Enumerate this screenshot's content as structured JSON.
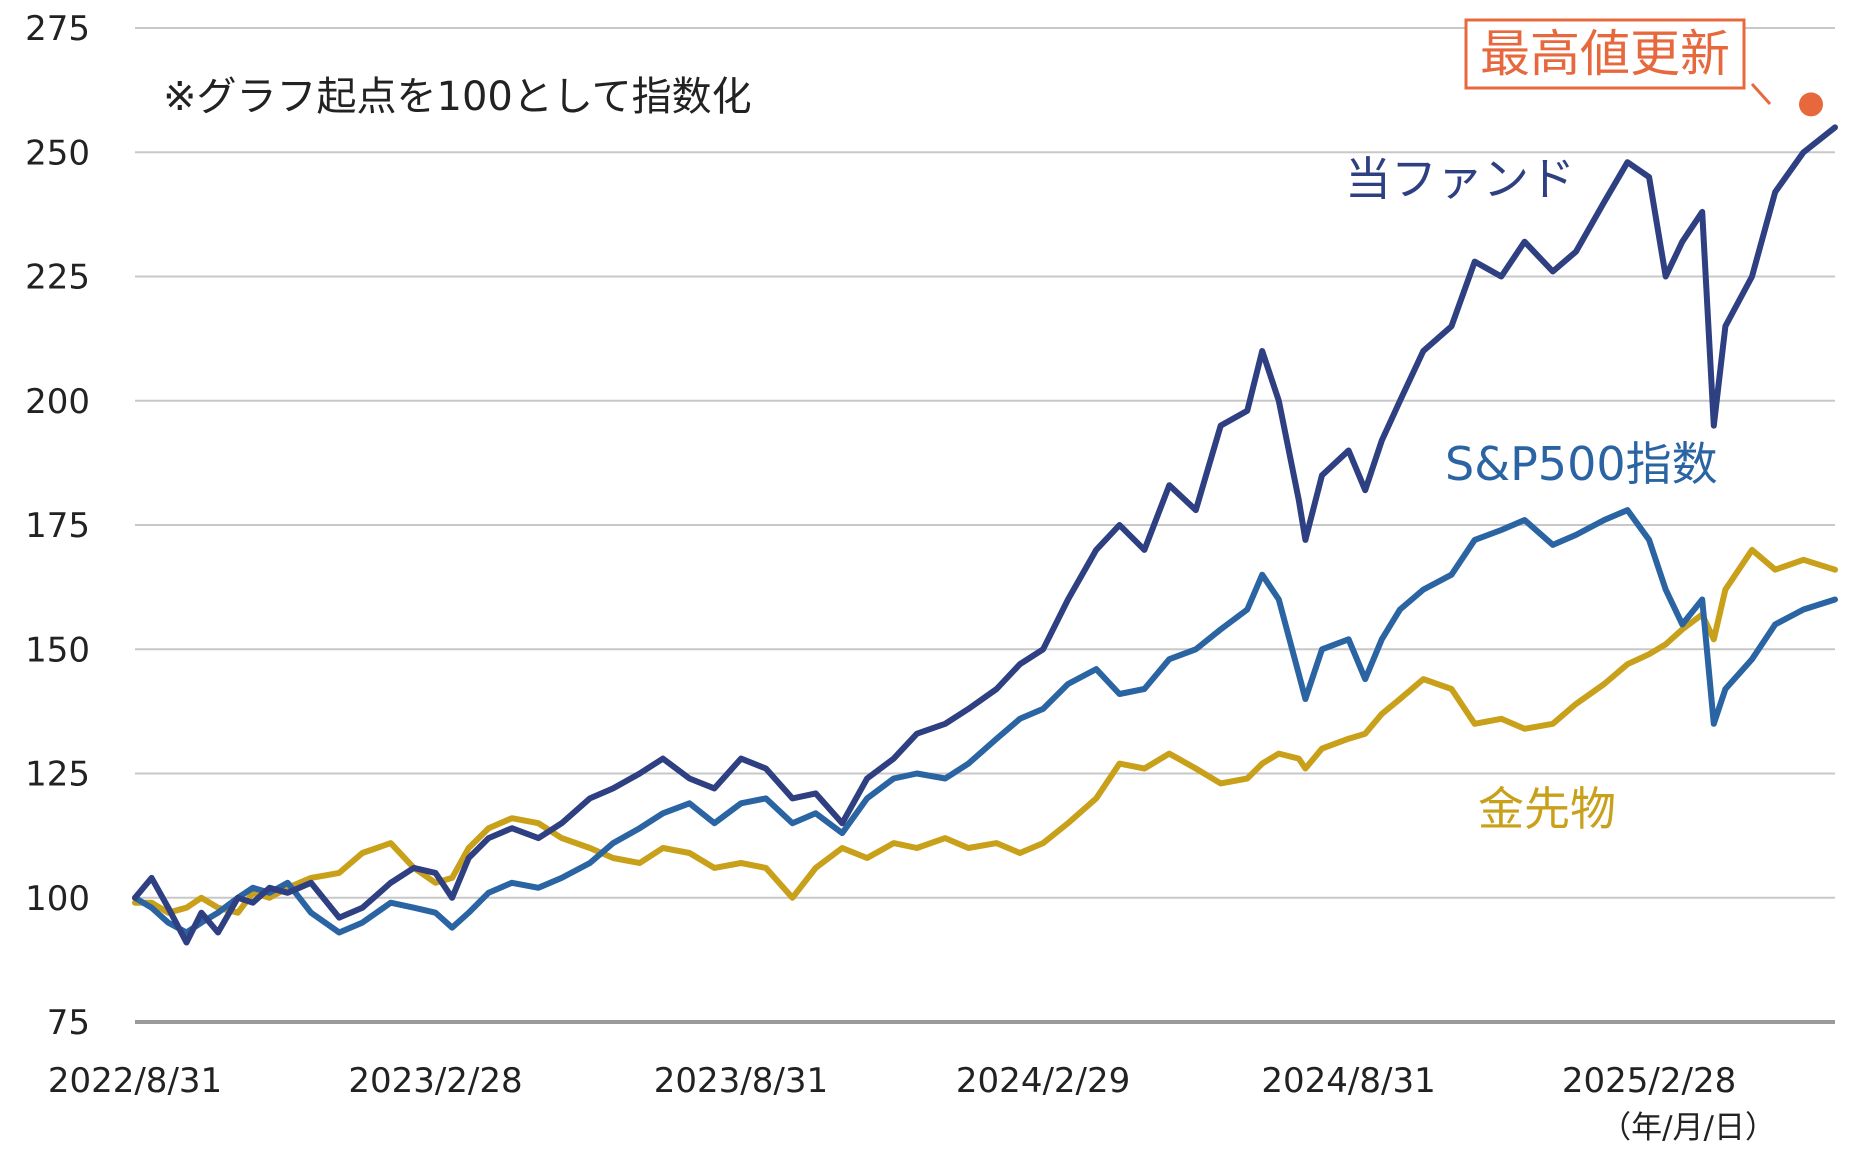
{
  "chart_data": {
    "type": "line",
    "note": "※グラフ起点を100として指数化",
    "x_unit_label": "（年/月/日）",
    "x_ticks": [
      "2022/8/31",
      "2023/2/28",
      "2023/8/31",
      "2024/2/29",
      "2024/8/31",
      "2025/2/28"
    ],
    "x_range": [
      "2022/8/31",
      "2025/6/20"
    ],
    "ylim": [
      75,
      275
    ],
    "y_ticks": [
      75,
      100,
      125,
      150,
      175,
      200,
      225,
      250,
      275
    ],
    "grid": true,
    "callout": {
      "text": "最高値更新",
      "date": "2025/6/20",
      "value": 255,
      "color": "#e8683e"
    },
    "series": [
      {
        "name": "当ファンド",
        "color": "#2e3f82",
        "points": [
          [
            "2022/8/31",
            100
          ],
          [
            "2022/9/10",
            104
          ],
          [
            "2022/9/20",
            98
          ],
          [
            "2022/10/1",
            91
          ],
          [
            "2022/10/10",
            97
          ],
          [
            "2022/10/20",
            93
          ],
          [
            "2022/11/1",
            100
          ],
          [
            "2022/11/10",
            99
          ],
          [
            "2022/11/20",
            102
          ],
          [
            "2022/12/1",
            101
          ],
          [
            "2022/12/15",
            103
          ],
          [
            "2023/1/1",
            96
          ],
          [
            "2023/1/15",
            98
          ],
          [
            "2023/2/1",
            103
          ],
          [
            "2023/2/15",
            106
          ],
          [
            "2023/2/28",
            105
          ],
          [
            "2023/3/10",
            100
          ],
          [
            "2023/3/20",
            108
          ],
          [
            "2023/4/1",
            112
          ],
          [
            "2023/4/15",
            114
          ],
          [
            "2023/5/1",
            112
          ],
          [
            "2023/5/15",
            115
          ],
          [
            "2023/6/1",
            120
          ],
          [
            "2023/6/15",
            122
          ],
          [
            "2023/7/1",
            125
          ],
          [
            "2023/7/15",
            128
          ],
          [
            "2023/7/31",
            124
          ],
          [
            "2023/8/15",
            122
          ],
          [
            "2023/8/31",
            128
          ],
          [
            "2023/9/15",
            126
          ],
          [
            "2023/10/1",
            120
          ],
          [
            "2023/10/15",
            121
          ],
          [
            "2023/10/31",
            115
          ],
          [
            "2023/11/15",
            124
          ],
          [
            "2023/12/1",
            128
          ],
          [
            "2023/12/15",
            133
          ],
          [
            "2024/1/1",
            135
          ],
          [
            "2024/1/15",
            138
          ],
          [
            "2024/2/1",
            142
          ],
          [
            "2024/2/15",
            147
          ],
          [
            "2024/2/29",
            150
          ],
          [
            "2024/3/15",
            160
          ],
          [
            "2024/4/1",
            170
          ],
          [
            "2024/4/15",
            175
          ],
          [
            "2024/4/30",
            170
          ],
          [
            "2024/5/15",
            183
          ],
          [
            "2024/5/31",
            178
          ],
          [
            "2024/6/15",
            195
          ],
          [
            "2024/7/1",
            198
          ],
          [
            "2024/7/10",
            210
          ],
          [
            "2024/7/20",
            200
          ],
          [
            "2024/8/1",
            180
          ],
          [
            "2024/8/5",
            172
          ],
          [
            "2024/8/15",
            185
          ],
          [
            "2024/8/31",
            190
          ],
          [
            "2024/9/10",
            182
          ],
          [
            "2024/9/20",
            192
          ],
          [
            "2024/10/1",
            200
          ],
          [
            "2024/10/15",
            210
          ],
          [
            "2024/11/1",
            215
          ],
          [
            "2024/11/15",
            228
          ],
          [
            "2024/12/1",
            225
          ],
          [
            "2024/12/15",
            232
          ],
          [
            "2025/1/1",
            226
          ],
          [
            "2025/1/15",
            230
          ],
          [
            "2025/2/1",
            240
          ],
          [
            "2025/2/15",
            248
          ],
          [
            "2025/2/28",
            245
          ],
          [
            "2025/3/10",
            225
          ],
          [
            "2025/3/20",
            232
          ],
          [
            "2025/4/1",
            238
          ],
          [
            "2025/4/8",
            195
          ],
          [
            "2025/4/15",
            215
          ],
          [
            "2025/5/1",
            225
          ],
          [
            "2025/5/15",
            242
          ],
          [
            "2025/6/1",
            250
          ],
          [
            "2025/6/20",
            255
          ]
        ]
      },
      {
        "name": "S&P500指数",
        "color": "#2a64a2",
        "points": [
          [
            "2022/8/31",
            100
          ],
          [
            "2022/9/10",
            98
          ],
          [
            "2022/9/20",
            95
          ],
          [
            "2022/10/1",
            93
          ],
          [
            "2022/10/10",
            95
          ],
          [
            "2022/10/20",
            97
          ],
          [
            "2022/11/1",
            100
          ],
          [
            "2022/11/10",
            102
          ],
          [
            "2022/11/20",
            101
          ],
          [
            "2022/12/1",
            103
          ],
          [
            "2022/12/15",
            97
          ],
          [
            "2023/1/1",
            93
          ],
          [
            "2023/1/15",
            95
          ],
          [
            "2023/2/1",
            99
          ],
          [
            "2023/2/15",
            98
          ],
          [
            "2023/2/28",
            97
          ],
          [
            "2023/3/10",
            94
          ],
          [
            "2023/3/20",
            97
          ],
          [
            "2023/4/1",
            101
          ],
          [
            "2023/4/15",
            103
          ],
          [
            "2023/5/1",
            102
          ],
          [
            "2023/5/15",
            104
          ],
          [
            "2023/6/1",
            107
          ],
          [
            "2023/6/15",
            111
          ],
          [
            "2023/7/1",
            114
          ],
          [
            "2023/7/15",
            117
          ],
          [
            "2023/7/31",
            119
          ],
          [
            "2023/8/15",
            115
          ],
          [
            "2023/8/31",
            119
          ],
          [
            "2023/9/15",
            120
          ],
          [
            "2023/10/1",
            115
          ],
          [
            "2023/10/15",
            117
          ],
          [
            "2023/10/31",
            113
          ],
          [
            "2023/11/15",
            120
          ],
          [
            "2023/12/1",
            124
          ],
          [
            "2023/12/15",
            125
          ],
          [
            "2024/1/1",
            124
          ],
          [
            "2024/1/15",
            127
          ],
          [
            "2024/2/1",
            132
          ],
          [
            "2024/2/15",
            136
          ],
          [
            "2024/2/29",
            138
          ],
          [
            "2024/3/15",
            143
          ],
          [
            "2024/4/1",
            146
          ],
          [
            "2024/4/15",
            141
          ],
          [
            "2024/4/30",
            142
          ],
          [
            "2024/5/15",
            148
          ],
          [
            "2024/5/31",
            150
          ],
          [
            "2024/6/15",
            154
          ],
          [
            "2024/7/1",
            158
          ],
          [
            "2024/7/10",
            165
          ],
          [
            "2024/7/20",
            160
          ],
          [
            "2024/8/1",
            145
          ],
          [
            "2024/8/5",
            140
          ],
          [
            "2024/8/15",
            150
          ],
          [
            "2024/8/31",
            152
          ],
          [
            "2024/9/10",
            144
          ],
          [
            "2024/9/20",
            152
          ],
          [
            "2024/10/1",
            158
          ],
          [
            "2024/10/15",
            162
          ],
          [
            "2024/11/1",
            165
          ],
          [
            "2024/11/15",
            172
          ],
          [
            "2024/12/1",
            174
          ],
          [
            "2024/12/15",
            176
          ],
          [
            "2025/1/1",
            171
          ],
          [
            "2025/1/15",
            173
          ],
          [
            "2025/2/1",
            176
          ],
          [
            "2025/2/15",
            178
          ],
          [
            "2025/2/28",
            172
          ],
          [
            "2025/3/10",
            162
          ],
          [
            "2025/3/20",
            155
          ],
          [
            "2025/4/1",
            160
          ],
          [
            "2025/4/8",
            135
          ],
          [
            "2025/4/15",
            142
          ],
          [
            "2025/5/1",
            148
          ],
          [
            "2025/5/15",
            155
          ],
          [
            "2025/6/1",
            158
          ],
          [
            "2025/6/20",
            160
          ]
        ]
      },
      {
        "name": "金先物",
        "color": "#c9a01a",
        "points": [
          [
            "2022/8/31",
            99
          ],
          [
            "2022/9/10",
            99
          ],
          [
            "2022/9/20",
            97
          ],
          [
            "2022/10/1",
            98
          ],
          [
            "2022/10/10",
            100
          ],
          [
            "2022/10/20",
            98
          ],
          [
            "2022/11/1",
            97
          ],
          [
            "2022/11/10",
            101
          ],
          [
            "2022/11/20",
            100
          ],
          [
            "2022/12/1",
            102
          ],
          [
            "2022/12/15",
            104
          ],
          [
            "2023/1/1",
            105
          ],
          [
            "2023/1/15",
            109
          ],
          [
            "2023/2/1",
            111
          ],
          [
            "2023/2/15",
            106
          ],
          [
            "2023/2/28",
            103
          ],
          [
            "2023/3/10",
            104
          ],
          [
            "2023/3/20",
            110
          ],
          [
            "2023/4/1",
            114
          ],
          [
            "2023/4/15",
            116
          ],
          [
            "2023/5/1",
            115
          ],
          [
            "2023/5/15",
            112
          ],
          [
            "2023/6/1",
            110
          ],
          [
            "2023/6/15",
            108
          ],
          [
            "2023/7/1",
            107
          ],
          [
            "2023/7/15",
            110
          ],
          [
            "2023/7/31",
            109
          ],
          [
            "2023/8/15",
            106
          ],
          [
            "2023/8/31",
            107
          ],
          [
            "2023/9/15",
            106
          ],
          [
            "2023/10/1",
            100
          ],
          [
            "2023/10/15",
            106
          ],
          [
            "2023/10/31",
            110
          ],
          [
            "2023/11/15",
            108
          ],
          [
            "2023/12/1",
            111
          ],
          [
            "2023/12/15",
            110
          ],
          [
            "2024/1/1",
            112
          ],
          [
            "2024/1/15",
            110
          ],
          [
            "2024/2/1",
            111
          ],
          [
            "2024/2/15",
            109
          ],
          [
            "2024/2/29",
            111
          ],
          [
            "2024/3/15",
            115
          ],
          [
            "2024/4/1",
            120
          ],
          [
            "2024/4/15",
            127
          ],
          [
            "2024/4/30",
            126
          ],
          [
            "2024/5/15",
            129
          ],
          [
            "2024/5/31",
            126
          ],
          [
            "2024/6/15",
            123
          ],
          [
            "2024/7/1",
            124
          ],
          [
            "2024/7/10",
            127
          ],
          [
            "2024/7/20",
            129
          ],
          [
            "2024/8/1",
            128
          ],
          [
            "2024/8/5",
            126
          ],
          [
            "2024/8/15",
            130
          ],
          [
            "2024/8/31",
            132
          ],
          [
            "2024/9/10",
            133
          ],
          [
            "2024/9/20",
            137
          ],
          [
            "2024/10/1",
            140
          ],
          [
            "2024/10/15",
            144
          ],
          [
            "2024/11/1",
            142
          ],
          [
            "2024/11/15",
            135
          ],
          [
            "2024/12/1",
            136
          ],
          [
            "2024/12/15",
            134
          ],
          [
            "2025/1/1",
            135
          ],
          [
            "2025/1/15",
            139
          ],
          [
            "2025/2/1",
            143
          ],
          [
            "2025/2/15",
            147
          ],
          [
            "2025/2/28",
            149
          ],
          [
            "2025/3/10",
            151
          ],
          [
            "2025/3/20",
            154
          ],
          [
            "2025/4/1",
            157
          ],
          [
            "2025/4/8",
            152
          ],
          [
            "2025/4/15",
            162
          ],
          [
            "2025/5/1",
            170
          ],
          [
            "2025/5/15",
            166
          ],
          [
            "2025/6/1",
            168
          ],
          [
            "2025/6/20",
            166
          ]
        ]
      }
    ]
  }
}
